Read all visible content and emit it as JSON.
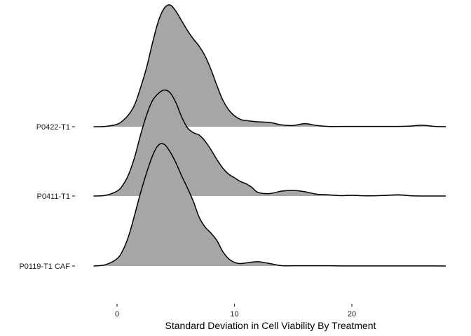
{
  "chart_data": {
    "type": "area",
    "subtype": "ridgeline",
    "title": "",
    "xlabel": "Standard Deviation in Cell Viability By Treatment",
    "ylabel": "",
    "xlim": [
      -2,
      28
    ],
    "x_ticks": [
      0,
      10,
      20
    ],
    "grid": false,
    "legend": "none",
    "fill_color": "#A6A6A6",
    "line_color": "#000000",
    "series": [
      {
        "name": "P0422-T1",
        "density_peak": 1.0,
        "x": [
          -2,
          -1,
          0,
          0.5,
          1,
          1.5,
          2,
          2.5,
          3,
          3.5,
          4,
          4.5,
          5,
          5.5,
          6,
          6.5,
          7,
          7.5,
          8,
          8.5,
          9,
          9.5,
          10,
          10.5,
          11,
          12,
          13,
          14,
          15,
          16,
          17,
          18,
          19,
          20,
          21,
          22,
          23,
          24,
          25,
          26,
          27,
          28
        ],
        "density": [
          0,
          0.002,
          0.02,
          0.05,
          0.1,
          0.18,
          0.32,
          0.48,
          0.68,
          0.86,
          0.97,
          1.0,
          0.95,
          0.87,
          0.79,
          0.72,
          0.66,
          0.58,
          0.47,
          0.34,
          0.22,
          0.14,
          0.09,
          0.06,
          0.05,
          0.04,
          0.035,
          0.015,
          0.01,
          0.025,
          0.01,
          0.002,
          0.002,
          0.002,
          0.002,
          0.002,
          0.002,
          0.002,
          0.005,
          0.012,
          0.003,
          0
        ]
      },
      {
        "name": "P0411-T1",
        "density_peak": 0.87,
        "x": [
          -2,
          -1,
          0,
          0.5,
          1,
          1.5,
          2,
          2.5,
          3,
          3.5,
          4,
          4.5,
          5,
          5.5,
          6,
          6.5,
          7,
          7.5,
          8,
          8.5,
          9,
          9.5,
          10,
          10.5,
          11,
          11.5,
          12,
          13,
          14,
          15,
          16,
          17,
          18,
          19,
          20,
          21,
          22,
          23,
          24,
          25,
          26,
          27,
          28
        ],
        "density": [
          0,
          0.005,
          0.04,
          0.09,
          0.18,
          0.32,
          0.5,
          0.66,
          0.78,
          0.84,
          0.87,
          0.85,
          0.77,
          0.65,
          0.56,
          0.52,
          0.5,
          0.45,
          0.38,
          0.3,
          0.23,
          0.18,
          0.15,
          0.12,
          0.1,
          0.07,
          0.03,
          0.02,
          0.04,
          0.045,
          0.035,
          0.015,
          0.01,
          0.003,
          0.006,
          0.002,
          0.002,
          0.006,
          0.01,
          0.002,
          0,
          0,
          0
        ]
      },
      {
        "name": "P0119-T1 CAF",
        "density_peak": 1.0,
        "x": [
          -2,
          -1,
          0,
          0.5,
          1,
          1.5,
          2,
          2.5,
          3,
          3.5,
          4,
          4.5,
          5,
          5.5,
          6,
          6.5,
          7,
          7.5,
          8,
          8.5,
          9,
          9.5,
          10,
          10.5,
          11,
          12,
          13,
          14,
          15,
          16,
          17,
          18,
          19,
          20,
          22,
          24,
          26,
          28
        ],
        "density": [
          0,
          0.01,
          0.06,
          0.13,
          0.25,
          0.42,
          0.6,
          0.76,
          0.9,
          0.99,
          1.0,
          0.94,
          0.85,
          0.74,
          0.64,
          0.53,
          0.4,
          0.32,
          0.27,
          0.21,
          0.12,
          0.06,
          0.03,
          0.02,
          0.025,
          0.035,
          0.02,
          0.003,
          0.002,
          0.002,
          0.002,
          0.002,
          0.001,
          0.001,
          0.001,
          0.001,
          0.001,
          0
        ]
      }
    ]
  }
}
